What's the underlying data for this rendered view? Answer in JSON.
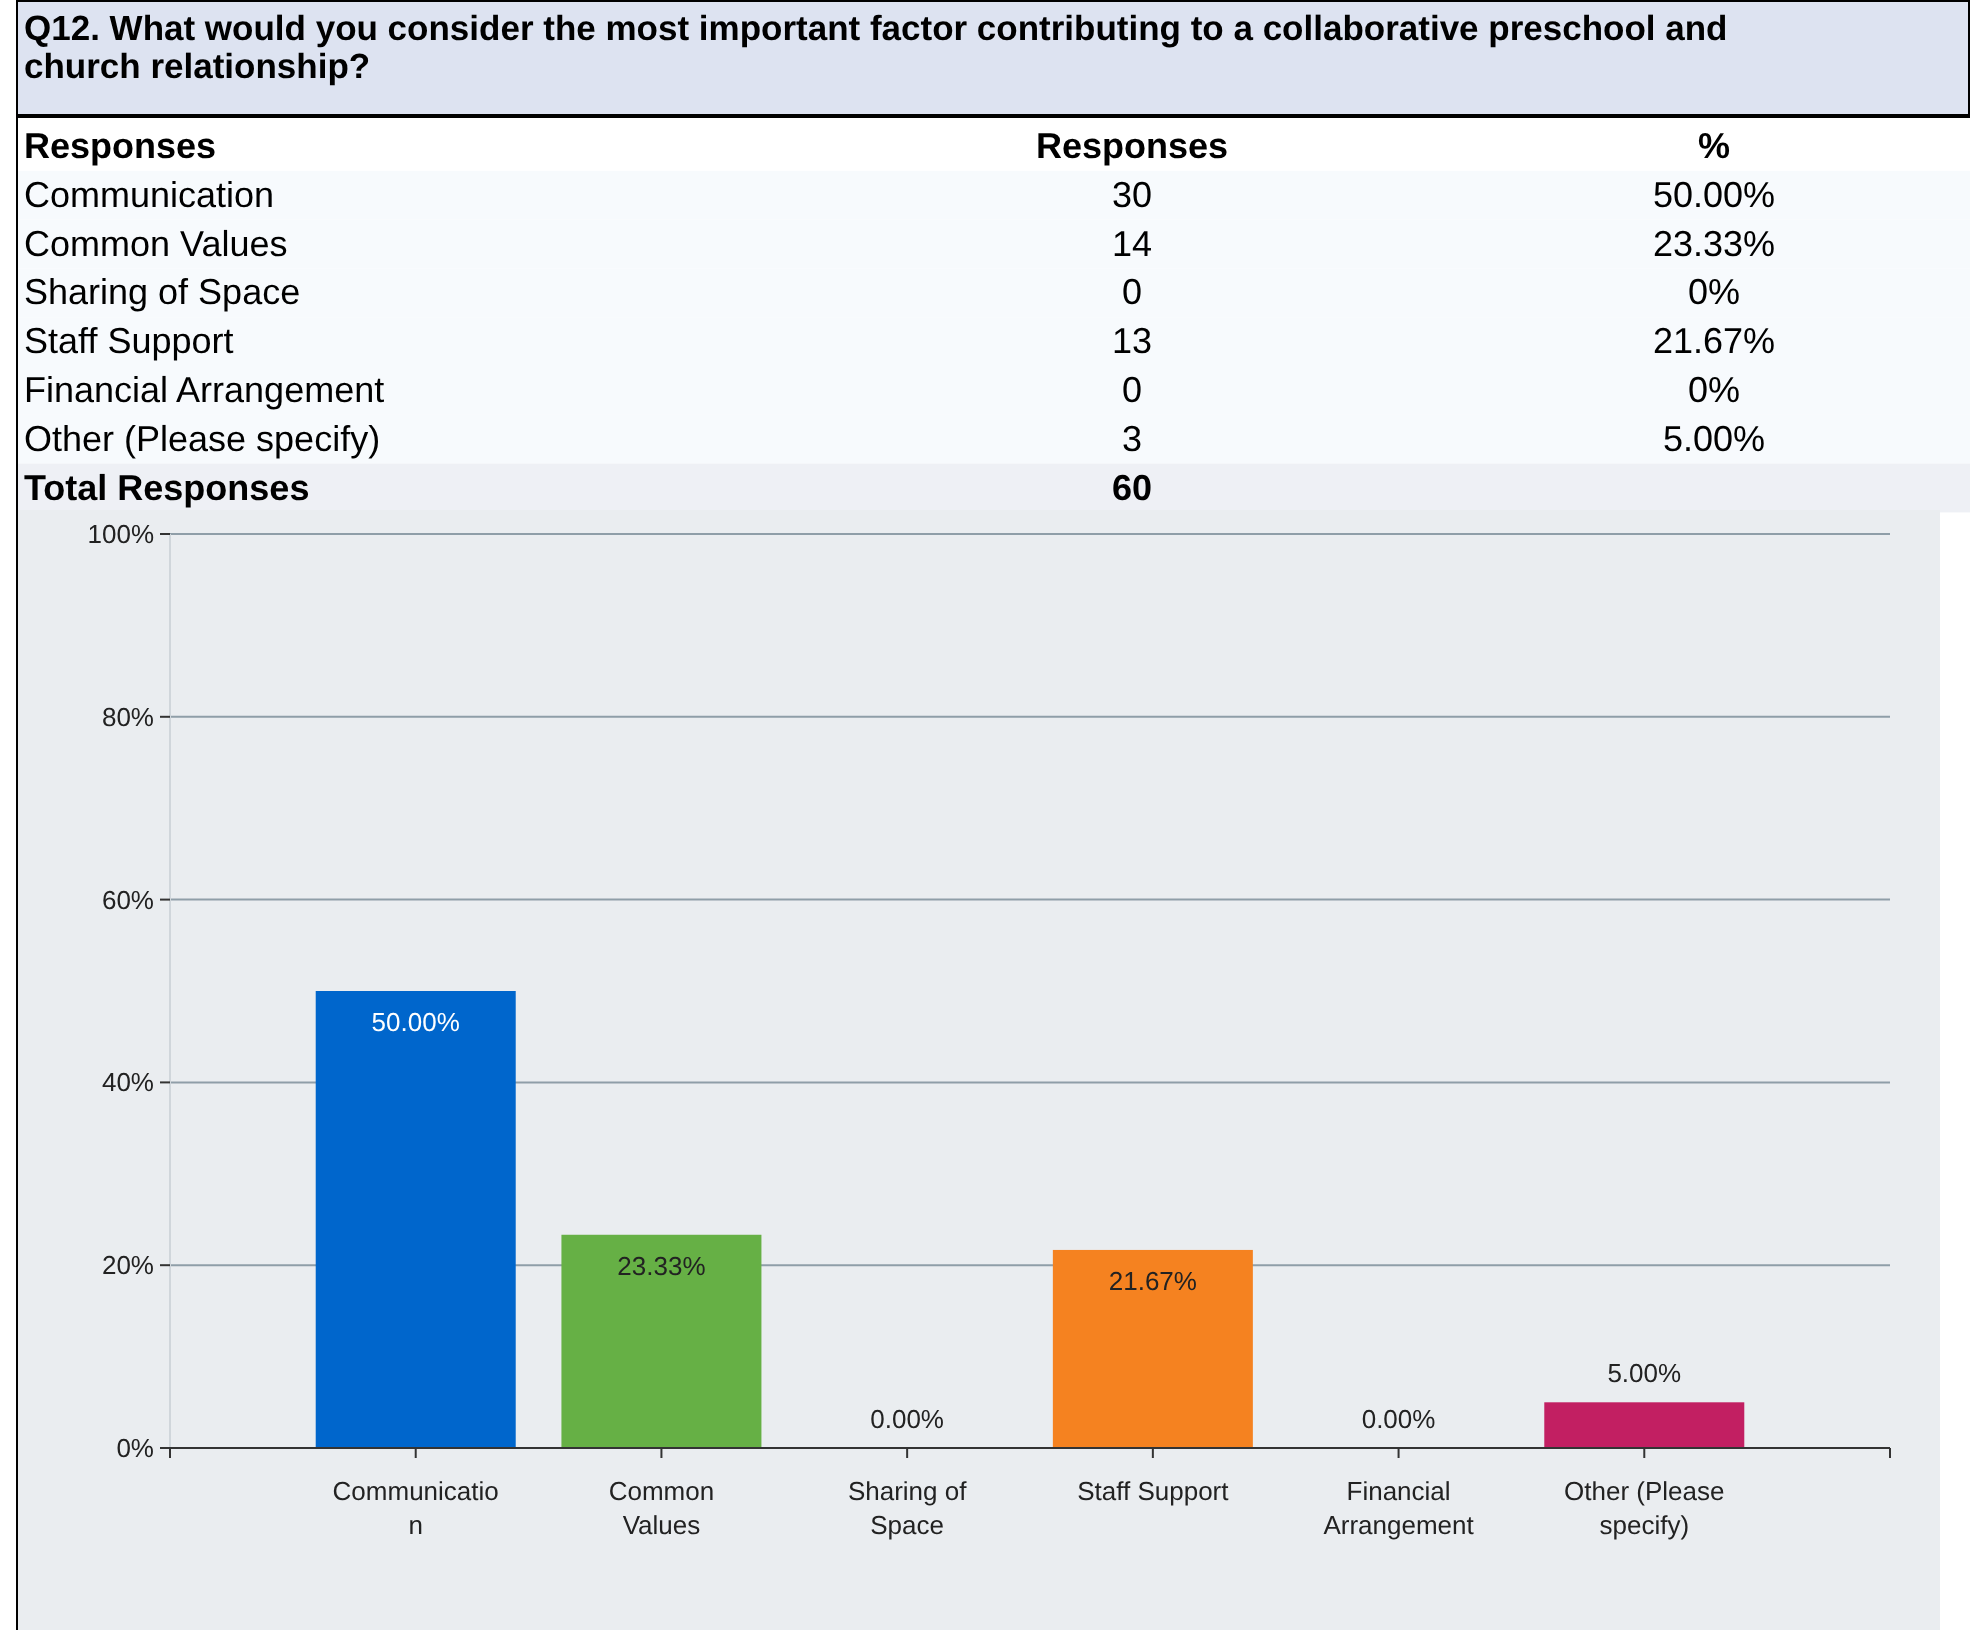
{
  "chart_data": {
    "type": "bar",
    "title": "Q12. What would you consider the most important factor contributing to a collaborative preschool and church relationship?",
    "categories": [
      "Communication",
      "Common Values",
      "Sharing of Space",
      "Staff Support",
      "Financial Arrangement",
      "Other (Please specify)"
    ],
    "values": [
      50,
      23.33,
      0,
      21.67,
      0,
      5
    ],
    "colors": [
      "#0066cc",
      "#66b045",
      "#999999",
      "#f58220",
      "#999999",
      "#c21f62"
    ],
    "value_labels": [
      "50.00%",
      "23.33%",
      "0.00%",
      "21.67%",
      "0.00%",
      "5.00%"
    ],
    "ylim": [
      0,
      100
    ],
    "yticks": [
      {
        "value": 0,
        "label": "0%"
      },
      {
        "value": 20,
        "label": "20%"
      },
      {
        "value": 40,
        "label": "40%"
      },
      {
        "value": 60,
        "label": "60%"
      },
      {
        "value": 80,
        "label": "80%"
      },
      {
        "value": 100,
        "label": "100%"
      }
    ],
    "grid": "y",
    "annotations": [
      "Responses",
      "Responses",
      "%",
      "Communication",
      "30",
      "50.00%",
      "Common Values",
      "14",
      "23.33%",
      "Sharing of Space",
      "0",
      "0%",
      "Staff Support",
      "13",
      "21.67%",
      "Financial Arrangement",
      "0",
      "0%",
      "Other (Please specify)",
      "3",
      "5.00%",
      "Total Responses",
      "60"
    ]
  }
}
